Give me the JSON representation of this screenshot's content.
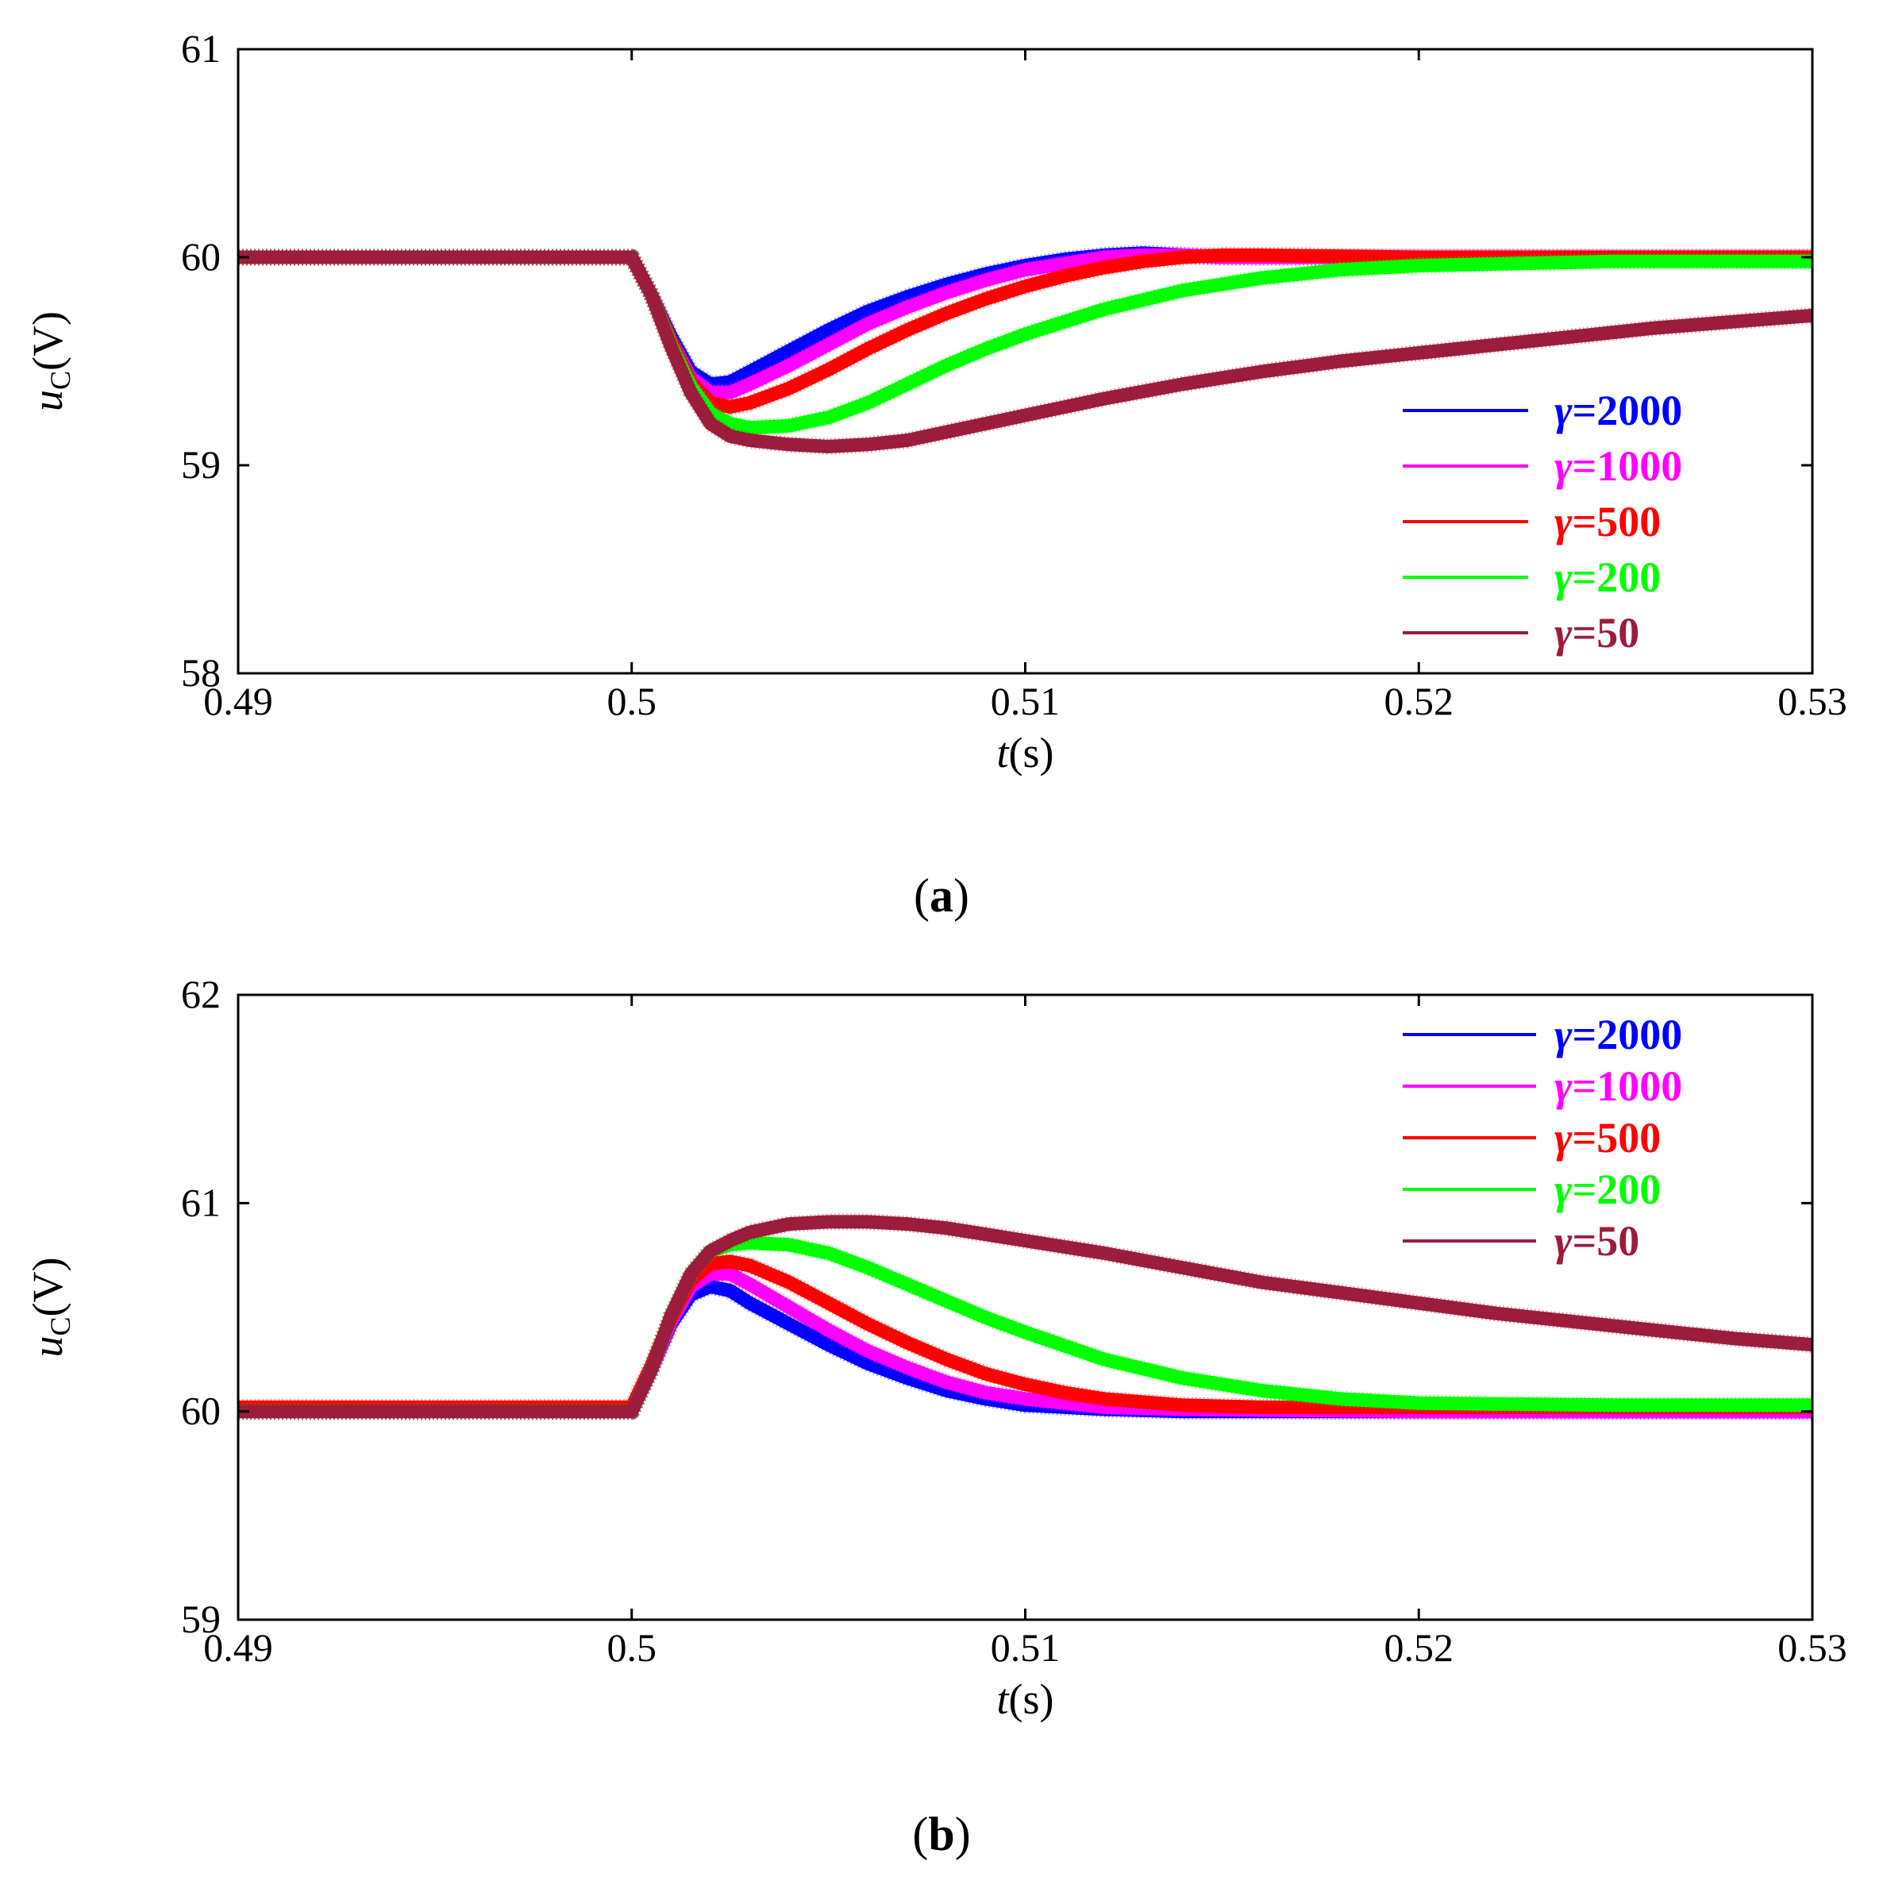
{
  "chart_data": [
    {
      "id": "a",
      "type": "line",
      "caption": "a",
      "xlabel": "t",
      "xunit": "(s)",
      "ylabel": "u",
      "ysub": "C",
      "yunit": "(V)",
      "xlim": [
        0.49,
        0.53
      ],
      "ylim": [
        58,
        61
      ],
      "xticks": [
        0.49,
        0.5,
        0.51,
        0.52,
        0.53
      ],
      "xtick_labels": [
        "0.49",
        "0.5",
        "0.51",
        "0.52",
        "0.53"
      ],
      "yticks": [
        58,
        59,
        60,
        61
      ],
      "ytick_labels": [
        "58",
        "59",
        "60",
        "61"
      ],
      "grid": false,
      "legend_position": "right",
      "series": [
        {
          "name": "γ=2000",
          "color": "#0000ff",
          "x": [
            0.49,
            0.5,
            0.5005,
            0.501,
            0.5015,
            0.502,
            0.5025,
            0.503,
            0.504,
            0.505,
            0.506,
            0.507,
            0.508,
            0.509,
            0.51,
            0.511,
            0.512,
            0.513,
            0.514,
            0.515,
            0.52,
            0.53
          ],
          "y": [
            60.0,
            60.0,
            59.82,
            59.62,
            59.45,
            59.39,
            59.4,
            59.45,
            59.55,
            59.65,
            59.74,
            59.81,
            59.87,
            59.92,
            59.96,
            59.99,
            60.01,
            60.02,
            60.01,
            60.0,
            60.0,
            60.0
          ]
        },
        {
          "name": "γ=1000",
          "color": "#ff00ff",
          "x": [
            0.49,
            0.5,
            0.5005,
            0.501,
            0.5015,
            0.502,
            0.5025,
            0.503,
            0.504,
            0.505,
            0.506,
            0.507,
            0.508,
            0.509,
            0.51,
            0.511,
            0.512,
            0.513,
            0.514,
            0.515,
            0.52,
            0.53
          ],
          "y": [
            60.0,
            60.0,
            59.82,
            59.6,
            59.42,
            59.35,
            59.35,
            59.39,
            59.48,
            59.58,
            59.68,
            59.76,
            59.83,
            59.89,
            59.94,
            59.97,
            60.0,
            60.01,
            60.01,
            60.0,
            60.0,
            60.0
          ]
        },
        {
          "name": "γ=500",
          "color": "#ff0000",
          "x": [
            0.49,
            0.5,
            0.5005,
            0.501,
            0.5015,
            0.502,
            0.5025,
            0.503,
            0.504,
            0.505,
            0.506,
            0.507,
            0.508,
            0.509,
            0.51,
            0.511,
            0.512,
            0.513,
            0.514,
            0.515,
            0.516,
            0.52,
            0.53
          ],
          "y": [
            60.0,
            60.0,
            59.82,
            59.6,
            59.4,
            59.3,
            59.28,
            59.3,
            59.37,
            59.46,
            59.56,
            59.65,
            59.73,
            59.8,
            59.86,
            59.91,
            59.95,
            59.98,
            60.0,
            60.01,
            60.01,
            60.0,
            60.0
          ]
        },
        {
          "name": "γ=200",
          "color": "#00ff00",
          "x": [
            0.49,
            0.5,
            0.5005,
            0.501,
            0.5015,
            0.502,
            0.5025,
            0.503,
            0.504,
            0.505,
            0.506,
            0.507,
            0.508,
            0.509,
            0.51,
            0.512,
            0.514,
            0.516,
            0.518,
            0.52,
            0.525,
            0.53
          ],
          "y": [
            60.0,
            60.0,
            59.82,
            59.58,
            59.38,
            59.25,
            59.2,
            59.18,
            59.19,
            59.23,
            59.3,
            59.39,
            59.48,
            59.56,
            59.63,
            59.75,
            59.84,
            59.9,
            59.94,
            59.96,
            59.98,
            59.98
          ]
        },
        {
          "name": "γ=50",
          "color": "#9c1c3c",
          "x": [
            0.49,
            0.5,
            0.5005,
            0.501,
            0.5015,
            0.502,
            0.5025,
            0.503,
            0.504,
            0.505,
            0.506,
            0.507,
            0.508,
            0.509,
            0.51,
            0.512,
            0.514,
            0.516,
            0.518,
            0.52,
            0.522,
            0.524,
            0.526,
            0.528,
            0.53
          ],
          "y": [
            60.0,
            60.0,
            59.82,
            59.57,
            59.35,
            59.2,
            59.14,
            59.12,
            59.1,
            59.09,
            59.1,
            59.12,
            59.16,
            59.2,
            59.24,
            59.32,
            59.39,
            59.45,
            59.5,
            59.54,
            59.58,
            59.62,
            59.66,
            59.69,
            59.72
          ]
        }
      ]
    },
    {
      "id": "b",
      "type": "line",
      "caption": "b",
      "xlabel": "t",
      "xunit": "(s)",
      "ylabel": "u",
      "ysub": "C",
      "yunit": "(V)",
      "xlim": [
        0.49,
        0.53
      ],
      "ylim": [
        59,
        62
      ],
      "xticks": [
        0.49,
        0.5,
        0.51,
        0.52,
        0.53
      ],
      "xtick_labels": [
        "0.49",
        "0.5",
        "0.51",
        "0.52",
        "0.53"
      ],
      "yticks": [
        59,
        60,
        61,
        62
      ],
      "ytick_labels": [
        "59",
        "60",
        "61",
        "62"
      ],
      "grid": false,
      "legend_position": "top-right",
      "series": [
        {
          "name": "γ=2000",
          "color": "#0000ff",
          "x": [
            0.49,
            0.5,
            0.5005,
            0.501,
            0.5015,
            0.502,
            0.5025,
            0.503,
            0.504,
            0.505,
            0.506,
            0.507,
            0.508,
            0.509,
            0.51,
            0.512,
            0.514,
            0.52,
            0.53
          ],
          "y": [
            60.0,
            60.0,
            60.2,
            60.42,
            60.56,
            60.6,
            60.58,
            60.52,
            60.42,
            60.32,
            60.23,
            60.16,
            60.1,
            60.06,
            60.03,
            60.01,
            60.0,
            60.0,
            60.0
          ]
        },
        {
          "name": "γ=1000",
          "color": "#ff00ff",
          "x": [
            0.49,
            0.5,
            0.5005,
            0.501,
            0.5015,
            0.502,
            0.5025,
            0.503,
            0.504,
            0.505,
            0.506,
            0.507,
            0.508,
            0.509,
            0.51,
            0.512,
            0.514,
            0.52,
            0.53
          ],
          "y": [
            60.0,
            60.0,
            60.2,
            60.43,
            60.6,
            60.66,
            60.66,
            60.61,
            60.5,
            60.39,
            60.29,
            60.21,
            60.14,
            60.09,
            60.06,
            60.02,
            60.01,
            60.0,
            60.0
          ]
        },
        {
          "name": "γ=500",
          "color": "#ff0000",
          "x": [
            0.49,
            0.5,
            0.5005,
            0.501,
            0.5015,
            0.502,
            0.5025,
            0.503,
            0.504,
            0.505,
            0.506,
            0.507,
            0.508,
            0.509,
            0.51,
            0.511,
            0.512,
            0.514,
            0.516,
            0.52,
            0.53
          ],
          "y": [
            60.02,
            60.02,
            60.22,
            60.45,
            60.63,
            60.71,
            60.72,
            60.7,
            60.62,
            60.52,
            60.42,
            60.33,
            60.25,
            60.18,
            60.13,
            60.09,
            60.06,
            60.03,
            60.02,
            60.02,
            60.02
          ]
        },
        {
          "name": "γ=200",
          "color": "#00ff00",
          "x": [
            0.49,
            0.5,
            0.5005,
            0.501,
            0.5015,
            0.502,
            0.5025,
            0.503,
            0.504,
            0.505,
            0.506,
            0.507,
            0.508,
            0.509,
            0.51,
            0.512,
            0.514,
            0.516,
            0.518,
            0.52,
            0.525,
            0.53
          ],
          "y": [
            60.0,
            60.0,
            60.2,
            60.46,
            60.66,
            60.77,
            60.8,
            60.81,
            60.8,
            60.76,
            60.69,
            60.61,
            60.53,
            60.45,
            60.38,
            60.25,
            60.16,
            60.1,
            60.06,
            60.04,
            60.03,
            60.03
          ]
        },
        {
          "name": "γ=50",
          "color": "#9c1c3c",
          "x": [
            0.49,
            0.5,
            0.5005,
            0.501,
            0.5015,
            0.502,
            0.5025,
            0.503,
            0.504,
            0.505,
            0.506,
            0.507,
            0.508,
            0.509,
            0.51,
            0.512,
            0.514,
            0.516,
            0.518,
            0.52,
            0.522,
            0.524,
            0.526,
            0.528,
            0.53
          ],
          "y": [
            60.0,
            60.0,
            60.2,
            60.46,
            60.66,
            60.77,
            60.82,
            60.86,
            60.9,
            60.91,
            60.91,
            60.9,
            60.88,
            60.85,
            60.82,
            60.76,
            60.69,
            60.62,
            60.57,
            60.52,
            60.47,
            60.43,
            60.39,
            60.35,
            60.32
          ]
        }
      ]
    }
  ]
}
